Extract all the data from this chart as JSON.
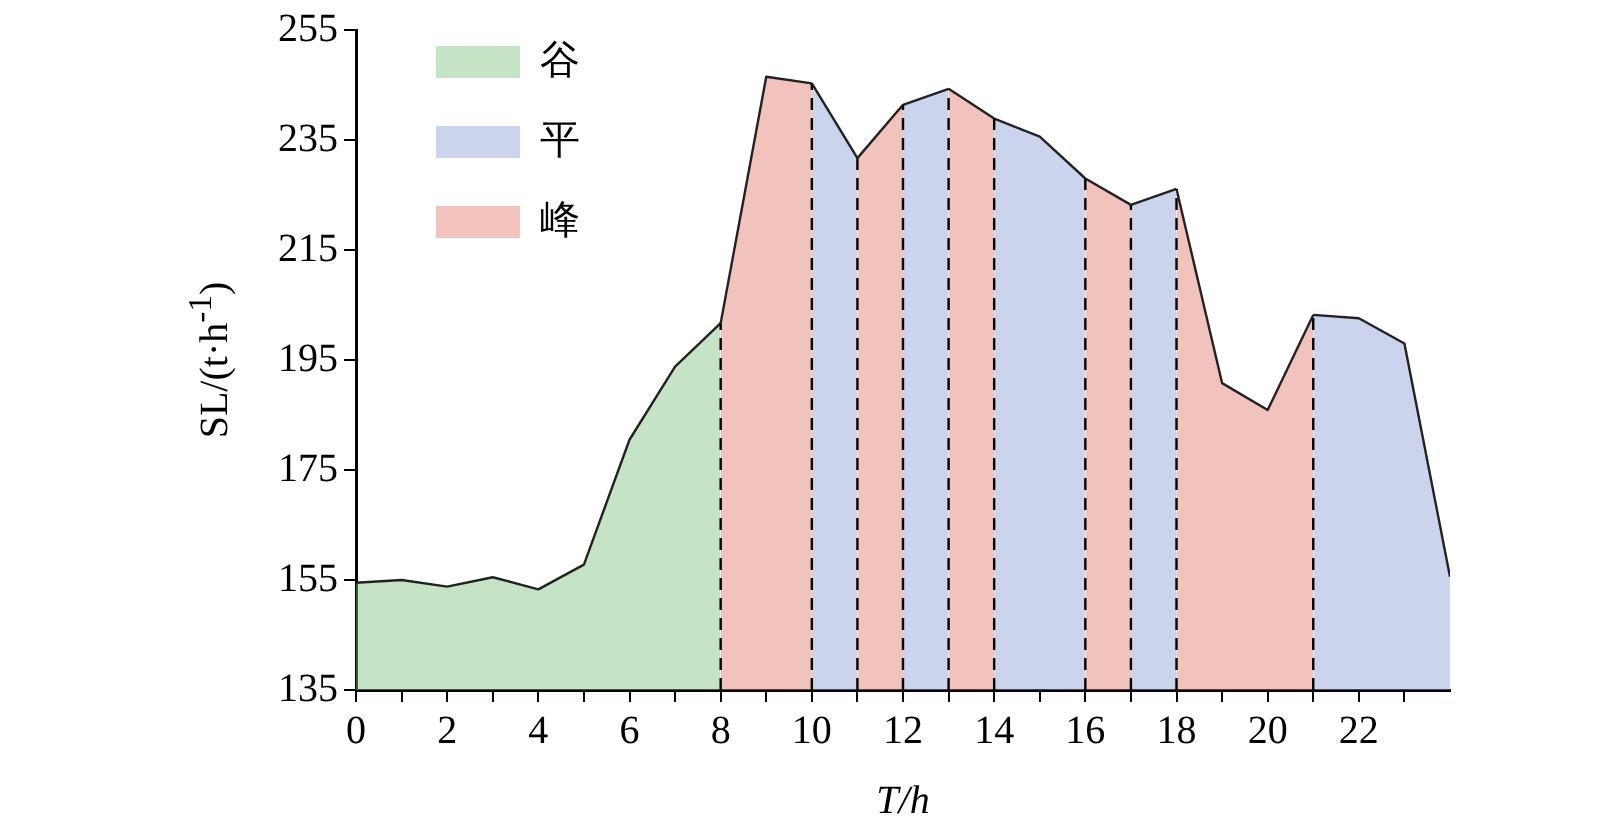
{
  "chart_data": {
    "type": "area",
    "xlabel": "T/h",
    "ylabel": "SL/(t·h$^{-1}$)",
    "xlim": [
      0,
      24
    ],
    "xticks": [
      0,
      {
        "value": 1,
        "label": null
      },
      2,
      {
        "value": 3,
        "label": null
      },
      4,
      {
        "value": 5,
        "label": null
      },
      6,
      {
        "value": 7,
        "label": null
      },
      8,
      {
        "value": 9,
        "label": null
      },
      10,
      {
        "value": 11,
        "label": null
      },
      12,
      {
        "value": 13,
        "label": null
      },
      14,
      {
        "value": 15,
        "label": null
      },
      16,
      {
        "value": 17,
        "label": null
      },
      18,
      {
        "value": 19,
        "label": null
      },
      20,
      {
        "value": 21,
        "label": null
      },
      22,
      {
        "value": 23,
        "label": null
      }
    ],
    "ylim": [
      135,
      255
    ],
    "yticks": [
      135,
      155,
      175,
      195,
      215,
      235,
      255
    ],
    "grid": false,
    "legend": "top left",
    "line_style": "solid",
    "marker": "none",
    "series": [
      {
        "name": "谷",
        "color": "#7fc47f",
        "x": [
          0,
          1,
          2,
          3,
          4,
          5,
          6,
          7,
          8
        ],
        "values": [
          154.5,
          155,
          153.8,
          155.5,
          153.3,
          157.8,
          180.5,
          193.8,
          201.7
        ]
      },
      {
        "name": "平",
        "color": "#8b9fd4",
        "x": [
          10,
          11
        ],
        "values": [
          245.3,
          231.7
        ]
      },
      {
        "name": "峰",
        "color": "#e07b6b",
        "x": [
          8,
          9,
          10
        ],
        "values": [
          201.7,
          246.5,
          245.3
        ]
      },
      {
        "color": "#e07b6b",
        "x": [
          11,
          12
        ],
        "values": [
          231.7,
          241.4
        ]
      },
      {
        "color": "#8b9fd4",
        "x": [
          12,
          13
        ],
        "values": [
          241.4,
          244.3
        ]
      },
      {
        "color": "#e07b6b",
        "x": [
          13,
          14
        ],
        "values": [
          244.3,
          238.9
        ]
      },
      {
        "color": "#8b9fd4",
        "x": [
          14,
          15,
          16
        ],
        "values": [
          238.9,
          235.6,
          228
        ]
      },
      {
        "color": "#e07b6b",
        "x": [
          16,
          17
        ],
        "values": [
          228,
          223.2
        ]
      },
      {
        "color": "#8b9fd4",
        "x": [
          17,
          18
        ],
        "values": [
          223.2,
          226.1
        ]
      },
      {
        "color": "#e07b6b",
        "x": [
          18,
          19,
          20,
          21
        ],
        "values": [
          226.1,
          190.8,
          185.9,
          203.2
        ]
      },
      {
        "color": "#8b9fd4",
        "x": [
          21,
          22,
          23,
          24
        ],
        "values": [
          203.2,
          202.6,
          198,
          155.6
        ]
      }
    ],
    "ref_lines": [
      {
        "axis": "x",
        "value": 8,
        "line_style": "dashed",
        "color": "#000000"
      },
      {
        "axis": "x",
        "value": 10,
        "line_style": "dashed",
        "color": "#000000"
      },
      {
        "axis": "x",
        "value": 11,
        "line_style": "dashed",
        "color": "#000000"
      },
      {
        "axis": "x",
        "value": 12,
        "line_style": "dashed",
        "color": "#000000"
      },
      {
        "axis": "x",
        "value": 13,
        "line_style": "dashed",
        "color": "#000000"
      },
      {
        "axis": "x",
        "value": 14,
        "line_style": "dashed",
        "color": "#000000"
      },
      {
        "axis": "x",
        "value": 16,
        "line_style": "dashed",
        "color": "#000000"
      },
      {
        "axis": "x",
        "value": 17,
        "line_style": "dashed",
        "color": "#000000"
      },
      {
        "axis": "x",
        "value": 18,
        "line_style": "dashed",
        "color": "#000000"
      },
      {
        "axis": "x",
        "value": 21,
        "line_style": "dashed",
        "color": "#000000"
      }
    ]
  }
}
